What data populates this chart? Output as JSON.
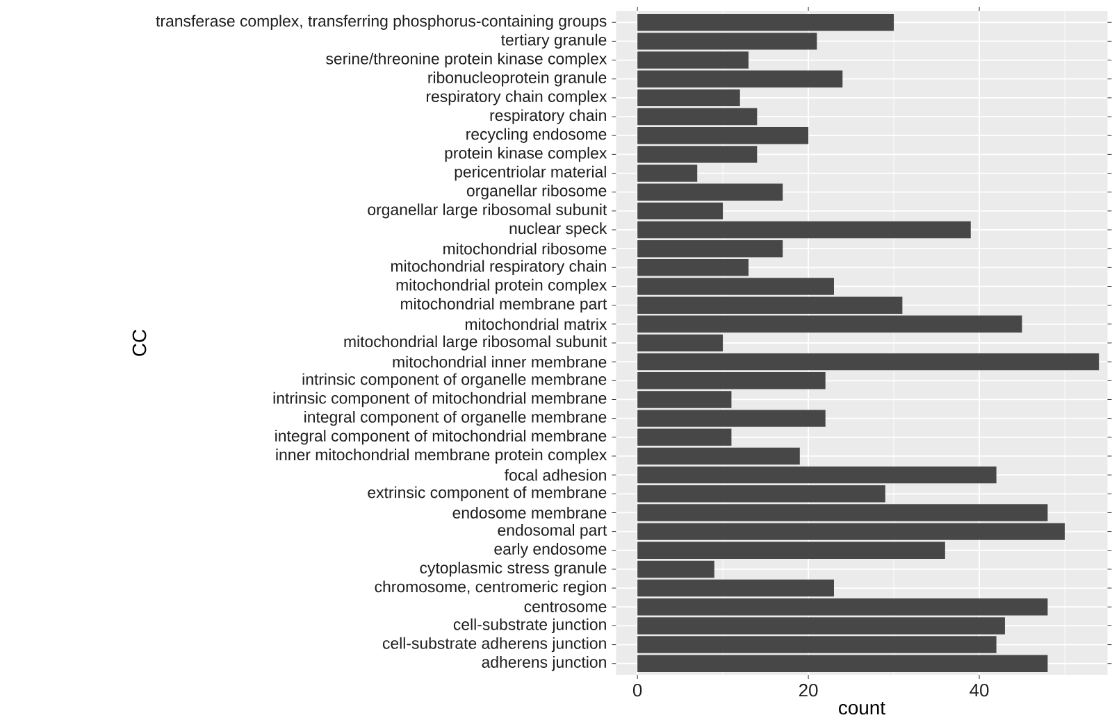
{
  "chart_data": {
    "type": "bar",
    "orientation": "horizontal",
    "xlabel": "count",
    "ylabel": "CC",
    "categories": [
      "transferase complex, transferring phosphorus-containing groups",
      "tertiary granule",
      "serine/threonine protein kinase complex",
      "ribonucleoprotein granule",
      "respiratory chain complex",
      "respiratory chain",
      "recycling endosome",
      "protein kinase complex",
      "pericentriolar material",
      "organellar ribosome",
      "organellar large ribosomal subunit",
      "nuclear speck",
      "mitochondrial ribosome",
      "mitochondrial respiratory chain",
      "mitochondrial protein complex",
      "mitochondrial membrane part",
      "mitochondrial matrix",
      "mitochondrial large ribosomal subunit",
      "mitochondrial inner membrane",
      "intrinsic component of organelle membrane",
      "intrinsic component of mitochondrial membrane",
      "integral component of organelle membrane",
      "integral component of mitochondrial membrane",
      "inner mitochondrial membrane protein complex",
      "focal adhesion",
      "extrinsic component of membrane",
      "endosome membrane",
      "endosomal part",
      "early endosome",
      "cytoplasmic stress granule",
      "chromosome, centromeric region",
      "centrosome",
      "cell-substrate junction",
      "cell-substrate adherens junction",
      "adherens junction"
    ],
    "values": [
      30,
      21,
      13,
      24,
      12,
      14,
      20,
      14,
      7,
      17,
      10,
      39,
      17,
      13,
      23,
      31,
      45,
      10,
      54,
      22,
      11,
      22,
      11,
      19,
      42,
      29,
      48,
      50,
      36,
      9,
      23,
      48,
      43,
      42,
      48
    ],
    "color": "#474747",
    "xlim": [
      -2.5,
      55
    ],
    "xticks": [
      0,
      {
        "value": 10,
        "label": null
      },
      20,
      {
        "value": 30,
        "label": null
      },
      40,
      {
        "value": 50,
        "label": null
      }
    ],
    "grid": true
  }
}
